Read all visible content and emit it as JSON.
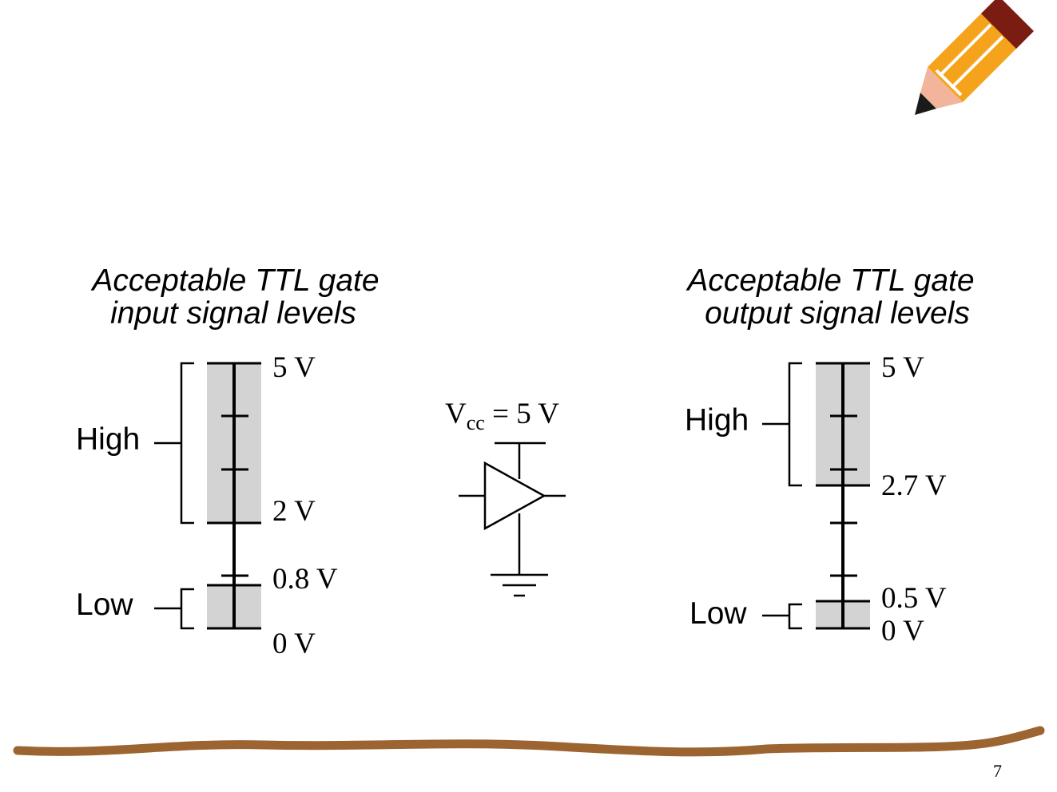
{
  "slide": {
    "page_number": "7"
  },
  "input_panel": {
    "title_line1": "Acceptable TTL gate",
    "title_line2": "input signal levels",
    "high_label": "High",
    "low_label": "Low",
    "voltage_labels": {
      "top": "5 V",
      "high_min": "2 V",
      "low_max": "0.8 V",
      "bottom": "0 V"
    }
  },
  "output_panel": {
    "title_line1": "Acceptable TTL gate",
    "title_line2": "output signal levels",
    "high_label": "High",
    "low_label": "Low",
    "voltage_labels": {
      "top": "5 V",
      "high_min": "2.7 V",
      "low_max": "0.5 V",
      "bottom": "0 V"
    }
  },
  "gate_symbol": {
    "vcc_main": "V",
    "vcc_subscript": "cc",
    "vcc_value": " = 5 V"
  },
  "decorations": {
    "pencil_icon": "pencil-icon",
    "underline_stroke": "brown-underline",
    "pencil_colors": {
      "body": "#f5a31a",
      "stripe": "#ffffff",
      "eraser": "#7a1c12",
      "wood": "#f2b49a",
      "lead": "#1a1a1a"
    },
    "underline_color": "#9c6430"
  }
}
